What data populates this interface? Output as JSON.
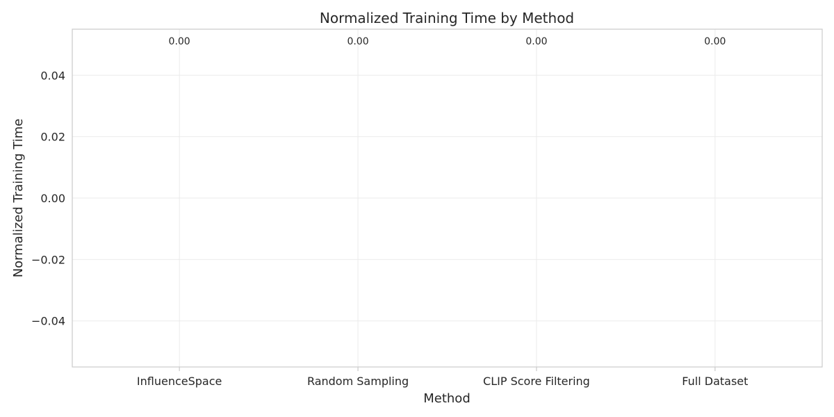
{
  "chart_data": {
    "type": "bar",
    "title": "Normalized Training Time by Method",
    "xlabel": "Method",
    "ylabel": "Normalized Training Time",
    "categories": [
      "InfluenceSpace",
      "Random Sampling",
      "CLIP Score Filtering",
      "Full Dataset"
    ],
    "values": [
      0,
      0,
      0,
      0
    ],
    "value_labels": [
      "0.00",
      "0.00",
      "0.00",
      "0.00"
    ],
    "ylim": [
      -0.055,
      0.055
    ],
    "yticks": [
      -0.04,
      -0.02,
      0.0,
      0.02,
      0.04
    ],
    "ytick_labels": [
      "−0.04",
      "−0.02",
      "0.00",
      "0.02",
      "0.04"
    ],
    "grid": true,
    "colors": {
      "text": "#262626",
      "grid": "#ebebeb",
      "frame": "#cccccc",
      "bar": "#4c72b0"
    }
  }
}
